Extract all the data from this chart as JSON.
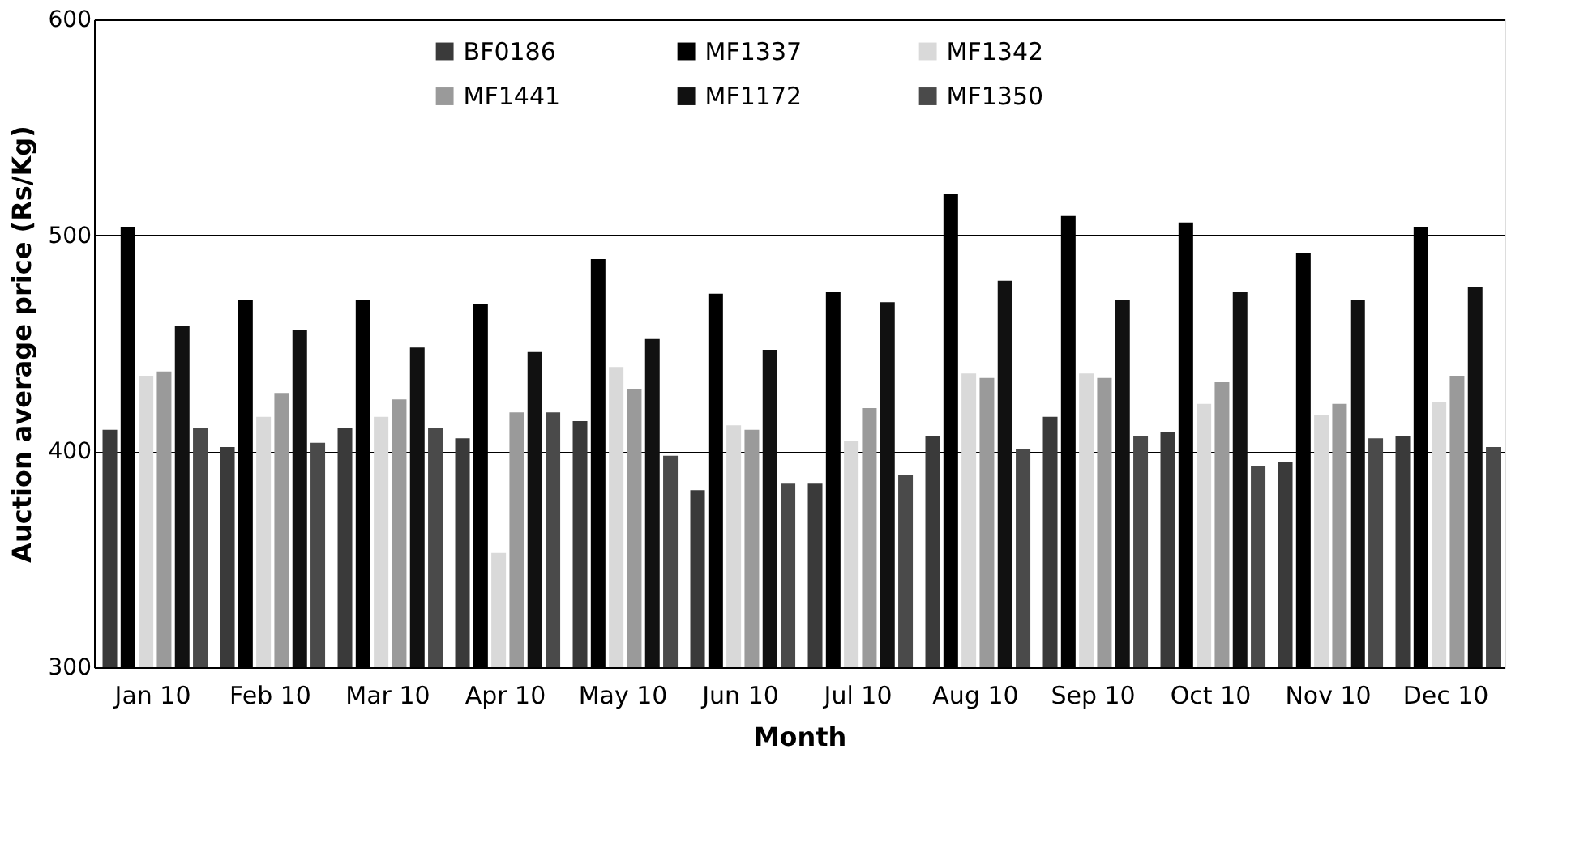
{
  "chart_data": {
    "type": "bar",
    "xlabel": "Month",
    "ylabel": "Auction average price (Rs/Kg)",
    "categories": [
      "Jan 10",
      "Feb 10",
      "Mar 10",
      "Apr 10",
      "May 10",
      "Jun 10",
      "Jul 10",
      "Aug 10",
      "Sep 10",
      "Oct 10",
      "Nov 10",
      "Dec 10"
    ],
    "series": [
      {
        "name": "BF0186",
        "color": "#3a3a3a",
        "values": [
          410,
          402,
          411,
          406,
          414,
          382,
          385,
          407,
          416,
          409,
          395,
          407
        ]
      },
      {
        "name": "MF1337",
        "color": "#000000",
        "values": [
          504,
          470,
          470,
          468,
          489,
          473,
          474,
          519,
          509,
          506,
          492,
          504
        ]
      },
      {
        "name": "MF1342",
        "color": "#d9d9d9",
        "values": [
          435,
          416,
          416,
          353,
          439,
          412,
          405,
          436,
          436,
          422,
          417,
          423
        ]
      },
      {
        "name": "MF1441",
        "color": "#9a9a9a",
        "values": [
          437,
          427,
          424,
          418,
          429,
          410,
          420,
          434,
          434,
          432,
          422,
          435
        ]
      },
      {
        "name": "MF1172",
        "color": "#111111",
        "values": [
          458,
          456,
          448,
          446,
          452,
          447,
          469,
          479,
          470,
          474,
          470,
          476
        ]
      },
      {
        "name": "MF1350",
        "color": "#4a4a4a",
        "values": [
          411,
          404,
          411,
          418,
          398,
          385,
          389,
          401,
          407,
          393,
          406,
          402
        ]
      }
    ],
    "ylim": [
      300,
      600
    ],
    "yticks": [
      300,
      400,
      500,
      600
    ],
    "grid": "y",
    "legend": "top"
  }
}
